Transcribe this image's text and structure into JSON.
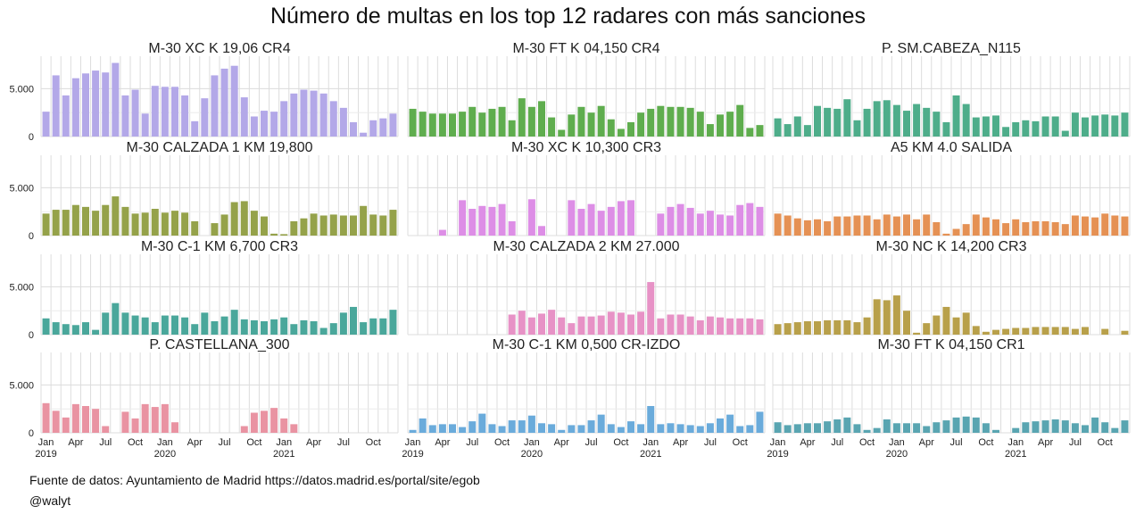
{
  "title": "Número de multas en los top 12 radares con  más sanciones",
  "caption": {
    "source": "Fuente de datos: Ayuntamiento de Madrid https://datos.madrid.es/portal/site/egob",
    "author": "@walyt"
  },
  "chart_data": {
    "type": "bar",
    "x": [
      "2019-01",
      "2019-02",
      "2019-03",
      "2019-04",
      "2019-05",
      "2019-06",
      "2019-07",
      "2019-08",
      "2019-09",
      "2019-10",
      "2019-11",
      "2019-12",
      "2020-01",
      "2020-02",
      "2020-03",
      "2020-04",
      "2020-05",
      "2020-06",
      "2020-07",
      "2020-08",
      "2020-09",
      "2020-10",
      "2020-11",
      "2020-12",
      "2021-01",
      "2021-02",
      "2021-03",
      "2021-04",
      "2021-05",
      "2021-06",
      "2021-07",
      "2021-08",
      "2021-09",
      "2021-10",
      "2021-11",
      "2021-12"
    ],
    "x_ticks": [
      {
        "month": 0,
        "label": "Jan",
        "year": "2019"
      },
      {
        "month": 3,
        "label": "Apr"
      },
      {
        "month": 6,
        "label": "Jul"
      },
      {
        "month": 9,
        "label": "Oct"
      },
      {
        "month": 12,
        "label": "Jan",
        "year": "2020"
      },
      {
        "month": 15,
        "label": "Apr"
      },
      {
        "month": 18,
        "label": "Jul"
      },
      {
        "month": 21,
        "label": "Oct"
      },
      {
        "month": 24,
        "label": "Jan",
        "year": "2021"
      },
      {
        "month": 27,
        "label": "Apr"
      },
      {
        "month": 30,
        "label": "Jul"
      },
      {
        "month": 33,
        "label": "Oct"
      }
    ],
    "y_ticks": [
      {
        "value": 0,
        "label": "0"
      },
      {
        "value": 5000,
        "label": "5.000"
      }
    ],
    "ylim": [
      0,
      8400
    ],
    "grid": true,
    "panels": [
      {
        "name": "M-30 XC K 19,06 CR4",
        "color": "#b3a8e8",
        "values": [
          2600,
          6400,
          4300,
          6100,
          6600,
          6900,
          6700,
          7700,
          4300,
          4900,
          2400,
          5300,
          5200,
          5200,
          4300,
          1600,
          4000,
          6400,
          7100,
          7400,
          4100,
          2100,
          2700,
          2600,
          3700,
          4500,
          4900,
          4800,
          4500,
          3700,
          3000,
          1500,
          400,
          1700,
          1900,
          2400
        ]
      },
      {
        "name": "M-30 FT K 04,150 CR4",
        "color": "#5fad4e",
        "values": [
          2900,
          2600,
          2400,
          2400,
          2400,
          2600,
          3100,
          2500,
          2900,
          3100,
          1700,
          4000,
          3100,
          3700,
          2000,
          700,
          2300,
          3100,
          2500,
          3200,
          1800,
          800,
          1500,
          2500,
          2900,
          3200,
          3100,
          3100,
          3000,
          2600,
          1300,
          2300,
          2600,
          3300,
          900,
          1200
        ]
      },
      {
        "name": "P. SM.CABEZA_N115",
        "color": "#4ead8a",
        "values": [
          1900,
          1300,
          2100,
          1200,
          3200,
          3000,
          2900,
          3900,
          1700,
          2900,
          3700,
          3800,
          3300,
          2700,
          3400,
          3000,
          2600,
          1500,
          4300,
          3400,
          2000,
          2100,
          2200,
          1000,
          1500,
          1700,
          1600,
          2100,
          2100,
          600,
          2500,
          2000,
          2200,
          2300,
          2200,
          2500
        ]
      },
      {
        "name": "M-30 CALZADA 1 KM 19,800",
        "color": "#95a24a",
        "values": [
          2300,
          2700,
          2700,
          3200,
          3000,
          2600,
          3200,
          4100,
          3000,
          2300,
          2400,
          2800,
          2400,
          2600,
          2400,
          1500,
          0,
          1300,
          2200,
          3500,
          3600,
          2600,
          2000,
          200,
          150,
          1500,
          1800,
          2300,
          2100,
          2200,
          2100,
          2100,
          3100,
          2200,
          2100,
          2700
        ]
      },
      {
        "name": "M-30 XC K 10,300 CR3",
        "color": "#dd8ee6",
        "values": [
          0,
          0,
          0,
          600,
          0,
          3700,
          2800,
          3100,
          3000,
          3300,
          1500,
          0,
          3800,
          1000,
          0,
          0,
          3700,
          2800,
          3300,
          2600,
          3000,
          3600,
          3700,
          0,
          0,
          2300,
          3000,
          3300,
          2900,
          2300,
          2600,
          2200,
          2100,
          3200,
          3400,
          3000
        ]
      },
      {
        "name": "A5 KM 4.0 SALIDA",
        "color": "#e59154",
        "values": [
          2300,
          2100,
          1800,
          1600,
          1700,
          1500,
          2000,
          2000,
          2100,
          2100,
          1700,
          2200,
          2000,
          2200,
          1700,
          2200,
          1400,
          200,
          700,
          1200,
          2200,
          1900,
          1700,
          1300,
          1700,
          1400,
          1500,
          1500,
          1400,
          1200,
          2100,
          2000,
          1900,
          2300,
          2100,
          2000
        ]
      },
      {
        "name": "M-30 C-1 KM 6,700 CR3",
        "color": "#4aa79b",
        "values": [
          1700,
          1300,
          1100,
          1000,
          1300,
          500,
          2300,
          3300,
          2300,
          2000,
          1800,
          1300,
          2000,
          2000,
          1800,
          1100,
          2300,
          1400,
          1900,
          2600,
          1600,
          1500,
          1400,
          1600,
          1800,
          1100,
          1500,
          1400,
          700,
          1200,
          2300,
          2900,
          1300,
          1700,
          1700,
          2600
        ]
      },
      {
        "name": "M-30 CALZADA 2 KM 27.000",
        "color": "#e792c6",
        "values": [
          0,
          0,
          0,
          0,
          0,
          0,
          0,
          0,
          0,
          0,
          2100,
          2500,
          1800,
          2200,
          2600,
          1800,
          1200,
          1900,
          1900,
          2000,
          2400,
          2300,
          2100,
          2400,
          5500,
          1700,
          2100,
          2100,
          1900,
          1500,
          1900,
          1800,
          1700,
          1700,
          1700,
          1600
        ]
      },
      {
        "name": "M-30 NC K 14,200 CR3",
        "color": "#b8a04a",
        "values": [
          1100,
          1200,
          1300,
          1400,
          1400,
          1500,
          1500,
          1500,
          1300,
          1800,
          3700,
          3600,
          4100,
          2500,
          200,
          1200,
          2000,
          2900,
          1800,
          2300,
          900,
          300,
          500,
          600,
          700,
          700,
          800,
          800,
          800,
          800,
          600,
          800,
          0,
          600,
          0,
          400
        ]
      },
      {
        "name": "P. CASTELLANA_300",
        "color": "#e993a2",
        "values": [
          3100,
          2300,
          1600,
          3000,
          2800,
          2500,
          700,
          0,
          2200,
          1500,
          3000,
          2700,
          3000,
          1100,
          0,
          0,
          0,
          0,
          0,
          0,
          700,
          2100,
          2300,
          2600,
          1500,
          900,
          0,
          0,
          0,
          0,
          0,
          0,
          0,
          0,
          0,
          0
        ]
      },
      {
        "name": "M-30 C-1 KM 0,500 CR-IZDO",
        "color": "#6aabdb",
        "values": [
          300,
          1500,
          800,
          900,
          900,
          600,
          1200,
          2000,
          900,
          700,
          1300,
          1300,
          1800,
          1000,
          900,
          300,
          800,
          800,
          1300,
          1900,
          900,
          600,
          1200,
          900,
          2800,
          900,
          1000,
          900,
          800,
          700,
          1000,
          1500,
          1900,
          700,
          800,
          2200
        ]
      },
      {
        "name": "M-30 FT K 04,150 CR1",
        "color": "#59a5b1",
        "values": [
          1100,
          800,
          900,
          1000,
          1000,
          1200,
          1400,
          1600,
          900,
          300,
          500,
          1400,
          1000,
          1000,
          1000,
          700,
          1100,
          1300,
          1600,
          1700,
          1600,
          1000,
          300,
          0,
          500,
          1100,
          1200,
          1300,
          1400,
          1300,
          1000,
          800,
          1600,
          1100,
          500,
          1300
        ]
      }
    ]
  }
}
